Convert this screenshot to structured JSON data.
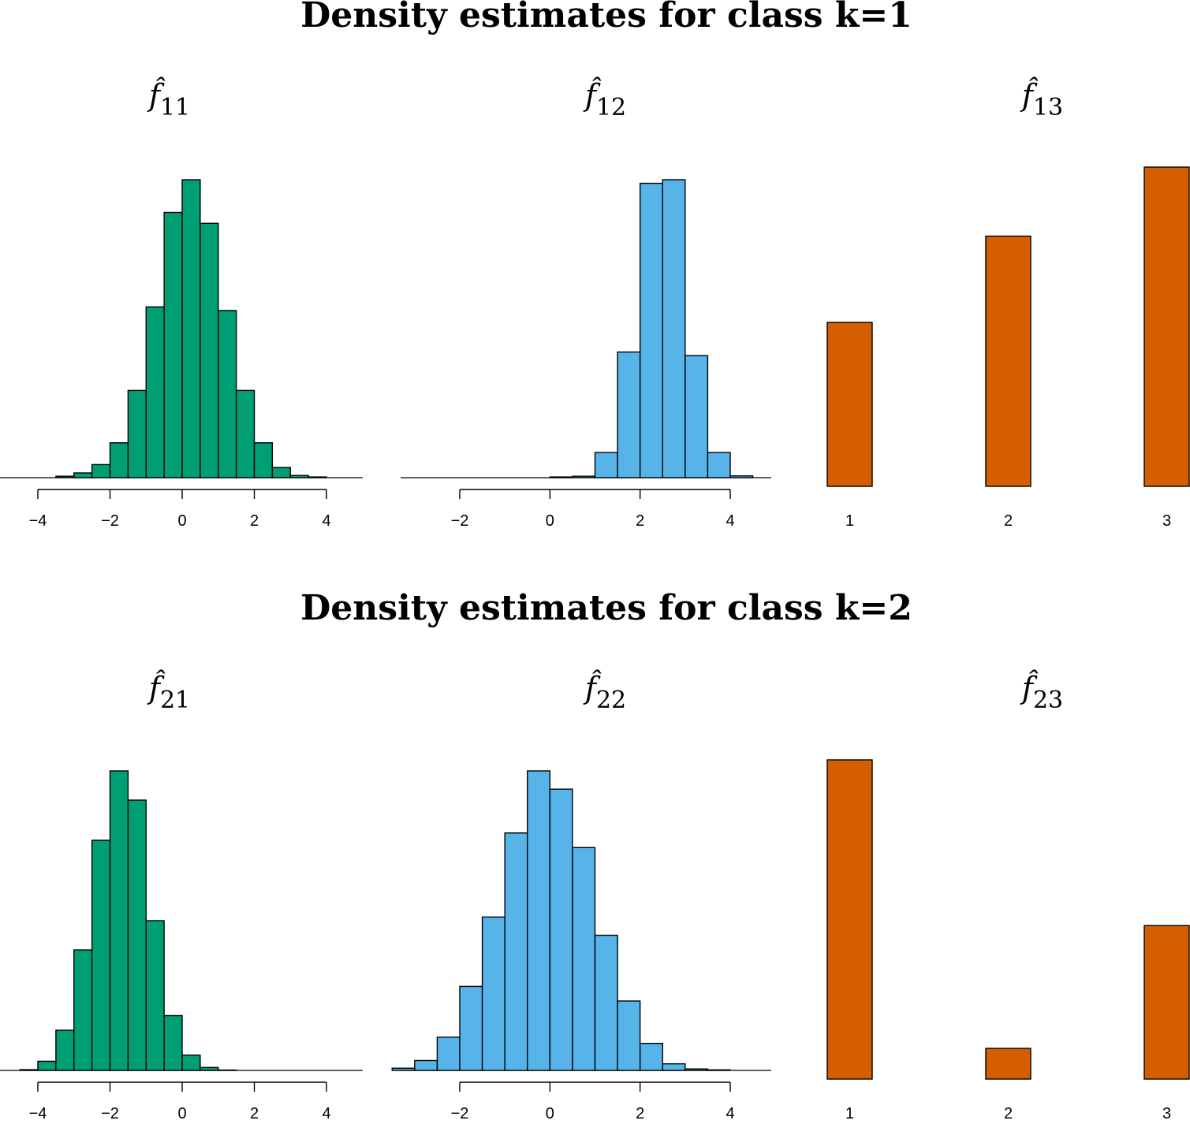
{
  "colors": {
    "continuous_1": "#009E73",
    "continuous_2": "#56B4E9",
    "categorical": "#D55E00",
    "outline": "#000000"
  },
  "groups": [
    {
      "title": "Density estimates for class k=1"
    },
    {
      "title": "Density estimates for class k=2"
    }
  ],
  "chart_data": [
    {
      "type": "bar",
      "histogram": true,
      "title": "f̂",
      "subscript": "11",
      "color": "#009E73",
      "bin_width": 0.5,
      "bin_start": -4,
      "values": [
        0.0004,
        0.004,
        0.013,
        0.036,
        0.096,
        0.24,
        0.47,
        0.73,
        0.82,
        0.7,
        0.46,
        0.24,
        0.096,
        0.028,
        0.006,
        0.002
      ],
      "xlim": [
        -4.8,
        5
      ],
      "xticks": [
        -4,
        -2,
        0,
        2,
        4
      ],
      "xtick_labels": [
        "−4",
        "−2",
        "0",
        "2",
        "4"
      ]
    },
    {
      "type": "bar",
      "histogram": true,
      "title": "f̂",
      "subscript": "12",
      "color": "#56B4E9",
      "bin_width": 0.5,
      "bin_start": -2.5,
      "values": [
        0,
        0,
        0,
        0,
        0,
        0.002,
        0.004,
        0.07,
        0.35,
        0.82,
        0.83,
        0.34,
        0.07,
        0.005,
        0
      ],
      "xlim": [
        -3.2,
        5
      ],
      "xticks": [
        -2,
        0,
        2,
        4
      ],
      "xtick_labels": [
        "−2",
        "0",
        "2",
        "4"
      ]
    },
    {
      "type": "bar",
      "title": "f̂",
      "subscript": "13",
      "color": "#D55E00",
      "categories": [
        "1",
        "2",
        "3"
      ],
      "values": [
        0.19,
        0.29,
        0.37
      ],
      "ylim": [
        0,
        0.37
      ]
    },
    {
      "type": "bar",
      "histogram": true,
      "title": "f̂",
      "subscript": "21",
      "color": "#009E73",
      "bin_width": 0.5,
      "bin_start": -4.5,
      "values": [
        0.002,
        0.025,
        0.11,
        0.33,
        0.63,
        0.82,
        0.74,
        0.41,
        0.15,
        0.042,
        0.008,
        0.001,
        0.0003,
        0.0002,
        0,
        0,
        0,
        0
      ],
      "xlim": [
        -4.8,
        5
      ],
      "xticks": [
        -4,
        -2,
        0,
        2,
        4
      ],
      "xtick_labels": [
        "−4",
        "−2",
        "0",
        "2",
        "4"
      ]
    },
    {
      "type": "bar",
      "histogram": true,
      "title": "f̂",
      "subscript": "22",
      "color": "#56B4E9",
      "bin_width": 0.5,
      "bin_start": -3.5,
      "values": [
        0.006,
        0.027,
        0.091,
        0.23,
        0.42,
        0.65,
        0.82,
        0.77,
        0.61,
        0.37,
        0.19,
        0.074,
        0.018,
        0.004,
        0.0015,
        0
      ],
      "xlim": [
        -3.5,
        5
      ],
      "xticks": [
        -2,
        0,
        2,
        4
      ],
      "xtick_labels": [
        "−2",
        "0",
        "2",
        "4"
      ]
    },
    {
      "type": "bar",
      "title": "f̂",
      "subscript": "23",
      "color": "#D55E00",
      "categories": [
        "1",
        "2",
        "3"
      ],
      "values": [
        0.52,
        0.05,
        0.25
      ],
      "ylim": [
        0,
        0.52
      ]
    }
  ]
}
